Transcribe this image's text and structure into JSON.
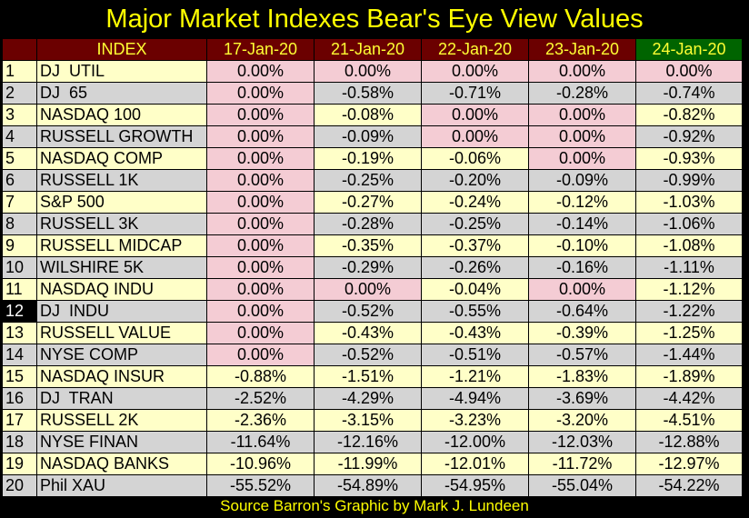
{
  "title": "Major Market Indexes Bear's Eye View Values",
  "footer": "Source Barron's   Graphic by Mark J. Lundeen",
  "colors": {
    "background": "#000000",
    "title_text": "#ffff00",
    "header_bg": "#6b0000",
    "latest_header_bg": "#006400",
    "row_odd": "#ffffc8",
    "row_even": "#d4d4d4",
    "zero_cell": "#f4ccd4"
  },
  "chart_data": {
    "type": "table",
    "title": "Major Market Indexes Bear's Eye View Values",
    "header_blank": "",
    "header_index": "INDEX",
    "columns": [
      "17-Jan-20",
      "21-Jan-20",
      "22-Jan-20",
      "23-Jan-20",
      "24-Jan-20"
    ],
    "highlighted_row": 12,
    "rows": [
      {
        "num": "1",
        "name": "DJ  UTIL",
        "values": [
          "0.00%",
          "0.00%",
          "0.00%",
          "0.00%",
          "0.00%"
        ]
      },
      {
        "num": "2",
        "name": "DJ  65",
        "values": [
          "0.00%",
          "-0.58%",
          "-0.71%",
          "-0.28%",
          "-0.74%"
        ]
      },
      {
        "num": "3",
        "name": "NASDAQ 100",
        "values": [
          "0.00%",
          "-0.08%",
          "0.00%",
          "0.00%",
          "-0.82%"
        ]
      },
      {
        "num": "4",
        "name": "RUSSELL GROWTH",
        "values": [
          "0.00%",
          "-0.09%",
          "0.00%",
          "0.00%",
          "-0.92%"
        ]
      },
      {
        "num": "5",
        "name": "NASDAQ COMP",
        "values": [
          "0.00%",
          "-0.19%",
          "-0.06%",
          "0.00%",
          "-0.93%"
        ]
      },
      {
        "num": "6",
        "name": "RUSSELL 1K",
        "values": [
          "0.00%",
          "-0.25%",
          "-0.20%",
          "-0.09%",
          "-0.99%"
        ]
      },
      {
        "num": "7",
        "name": "S&P 500",
        "values": [
          "0.00%",
          "-0.27%",
          "-0.24%",
          "-0.12%",
          "-1.03%"
        ]
      },
      {
        "num": "8",
        "name": "RUSSELL 3K",
        "values": [
          "0.00%",
          "-0.28%",
          "-0.25%",
          "-0.14%",
          "-1.06%"
        ]
      },
      {
        "num": "9",
        "name": "RUSSELL MIDCAP",
        "values": [
          "0.00%",
          "-0.35%",
          "-0.37%",
          "-0.10%",
          "-1.08%"
        ]
      },
      {
        "num": "10",
        "name": "WILSHIRE 5K",
        "values": [
          "0.00%",
          "-0.29%",
          "-0.26%",
          "-0.16%",
          "-1.11%"
        ]
      },
      {
        "num": "11",
        "name": "NASDAQ INDU",
        "values": [
          "0.00%",
          "0.00%",
          "-0.04%",
          "0.00%",
          "-1.12%"
        ]
      },
      {
        "num": "12",
        "name": "DJ  INDU",
        "values": [
          "0.00%",
          "-0.52%",
          "-0.55%",
          "-0.64%",
          "-1.22%"
        ]
      },
      {
        "num": "13",
        "name": "RUSSELL VALUE",
        "values": [
          "0.00%",
          "-0.43%",
          "-0.43%",
          "-0.39%",
          "-1.25%"
        ]
      },
      {
        "num": "14",
        "name": "NYSE COMP",
        "values": [
          "0.00%",
          "-0.52%",
          "-0.51%",
          "-0.57%",
          "-1.44%"
        ]
      },
      {
        "num": "15",
        "name": "NASDAQ INSUR",
        "values": [
          "-0.88%",
          "-1.51%",
          "-1.21%",
          "-1.83%",
          "-1.89%"
        ]
      },
      {
        "num": "16",
        "name": "DJ  TRAN",
        "values": [
          "-2.52%",
          "-4.29%",
          "-4.94%",
          "-3.69%",
          "-4.42%"
        ]
      },
      {
        "num": "17",
        "name": "RUSSELL 2K",
        "values": [
          "-2.36%",
          "-3.15%",
          "-3.23%",
          "-3.20%",
          "-4.51%"
        ]
      },
      {
        "num": "18",
        "name": "NYSE FINAN",
        "values": [
          "-11.64%",
          "-12.16%",
          "-12.00%",
          "-12.03%",
          "-12.88%"
        ]
      },
      {
        "num": "19",
        "name": "NASDAQ BANKS",
        "values": [
          "-10.96%",
          "-11.99%",
          "-12.01%",
          "-11.72%",
          "-12.97%"
        ]
      },
      {
        "num": "20",
        "name": "Phil XAU",
        "values": [
          "-55.52%",
          "-54.89%",
          "-54.95%",
          "-55.04%",
          "-54.22%"
        ]
      }
    ]
  }
}
